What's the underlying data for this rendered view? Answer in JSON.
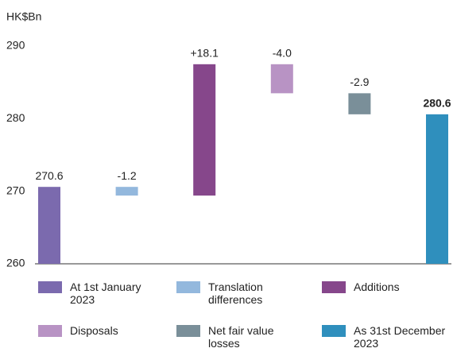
{
  "chart_data": {
    "type": "waterfall",
    "y_label": "HK$Bn",
    "categories": [
      "At 1st January 2023",
      "Translation differences",
      "Additions",
      "Disposals",
      "Net fair value losses",
      "As 31st December 2023"
    ],
    "values": [
      270.6,
      -1.2,
      18.1,
      -4.0,
      -2.9,
      280.6
    ],
    "value_labels": [
      "270.6",
      "-1.2",
      "+18.1",
      "-4.0",
      "-2.9",
      "280.6"
    ],
    "measure": [
      "absolute",
      "relative",
      "relative",
      "relative",
      "relative",
      "absolute"
    ],
    "colors": [
      "#7b6aae",
      "#93b8dd",
      "#86478b",
      "#b893c4",
      "#7a8f99",
      "#2f8fbd"
    ],
    "ylim": [
      260,
      290
    ],
    "yticks": [
      260,
      270,
      280,
      290
    ],
    "grid": false
  }
}
